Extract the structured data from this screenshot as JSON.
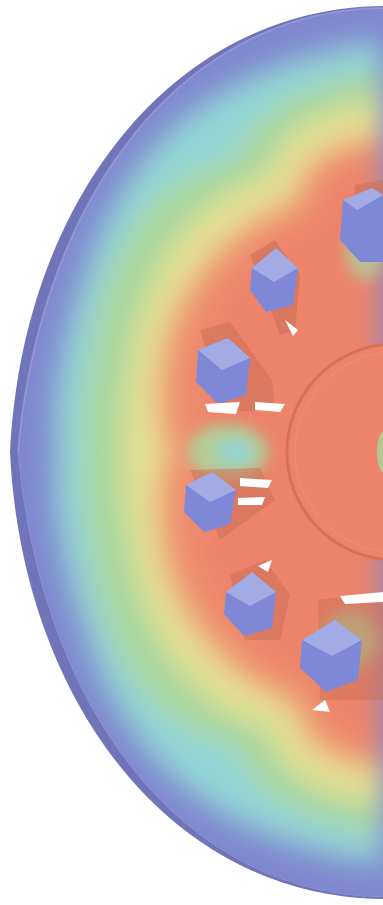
{
  "scene": {
    "subject": "simulation-contour-disc",
    "colors": {
      "background": "#ffffff",
      "rim_edge": "#6f75b8",
      "outer_blue": "#7f88cf",
      "cyan": "#92d4d6",
      "green": "#a9d79c",
      "yellow": "#e5e193",
      "orange": "#f2a77e",
      "hot": "#ec836a",
      "pocket_cube": "#7f88d6",
      "pocket_shadow": "#c86f55"
    }
  }
}
